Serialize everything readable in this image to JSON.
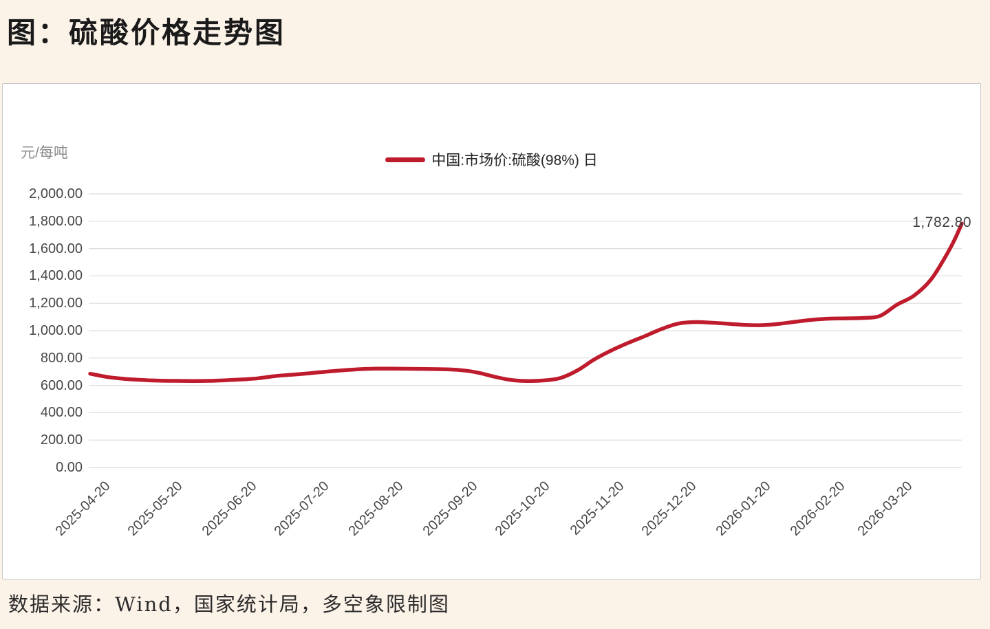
{
  "page": {
    "background_color": "#fcf3e8",
    "panel_color": "#ffffff",
    "grid_color": "#dedede",
    "accent_color": "#be1c2d"
  },
  "title": "图：硫酸价格走势图",
  "footer": "数据来源：Wind，国家统计局，多空象限制图",
  "chart_data": {
    "type": "line",
    "title": "硫酸价格走势图",
    "unit_label": "元/每吨",
    "legend_position": "top-center",
    "grid": true,
    "legend": [
      {
        "name": "中国:市场价:硫酸(98%) 日",
        "color": "#be1c2d"
      }
    ],
    "ylim": [
      0,
      2000
    ],
    "y_ticks": [
      "2,000.00",
      "1,800.00",
      "1,600.00",
      "1,400.00",
      "1,200.00",
      "1,000.00",
      "800.00",
      "600.00",
      "400.00",
      "200.00",
      "0.00"
    ],
    "x_ticks": [
      "2025-04-20",
      "2025-05-20",
      "2025-06-20",
      "2025-07-20",
      "2025-08-20",
      "2025-09-20",
      "2025-10-20",
      "2025-11-20",
      "2025-12-20",
      "2026-01-20",
      "2026-02-20",
      "2026-03-20"
    ],
    "x_range": [
      "2025-04-20",
      "2026-04-18"
    ],
    "end_label": "1,782.80",
    "end_value": 1782.8,
    "series": [
      {
        "name": "中国:市场价:硫酸(98%) 日",
        "color": "#be1c2d",
        "points": [
          [
            "2025-04-20",
            685
          ],
          [
            "2025-04-27",
            662
          ],
          [
            "2025-05-04",
            648
          ],
          [
            "2025-05-11",
            640
          ],
          [
            "2025-05-18",
            635
          ],
          [
            "2025-05-25",
            633
          ],
          [
            "2025-06-01",
            632
          ],
          [
            "2025-06-08",
            633
          ],
          [
            "2025-06-15",
            637
          ],
          [
            "2025-06-22",
            643
          ],
          [
            "2025-06-29",
            652
          ],
          [
            "2025-07-06",
            668
          ],
          [
            "2025-07-13",
            678
          ],
          [
            "2025-07-20",
            688
          ],
          [
            "2025-07-27",
            700
          ],
          [
            "2025-08-03",
            710
          ],
          [
            "2025-08-10",
            718
          ],
          [
            "2025-08-17",
            722
          ],
          [
            "2025-08-24",
            722
          ],
          [
            "2025-08-31",
            721
          ],
          [
            "2025-09-07",
            720
          ],
          [
            "2025-09-14",
            718
          ],
          [
            "2025-09-21",
            712
          ],
          [
            "2025-09-28",
            695
          ],
          [
            "2025-10-05",
            665
          ],
          [
            "2025-10-12",
            640
          ],
          [
            "2025-10-19",
            632
          ],
          [
            "2025-10-26",
            636
          ],
          [
            "2025-11-02",
            655
          ],
          [
            "2025-11-09",
            710
          ],
          [
            "2025-11-16",
            790
          ],
          [
            "2025-11-23",
            855
          ],
          [
            "2025-11-30",
            910
          ],
          [
            "2025-12-07",
            960
          ],
          [
            "2025-12-14",
            1012
          ],
          [
            "2025-12-21",
            1052
          ],
          [
            "2025-12-28",
            1063
          ],
          [
            "2026-01-04",
            1058
          ],
          [
            "2026-01-11",
            1050
          ],
          [
            "2026-01-18",
            1041
          ],
          [
            "2026-01-25",
            1040
          ],
          [
            "2026-02-01",
            1050
          ],
          [
            "2026-02-08",
            1066
          ],
          [
            "2026-02-15",
            1080
          ],
          [
            "2026-02-22",
            1088
          ],
          [
            "2026-03-01",
            1090
          ],
          [
            "2026-03-08",
            1093
          ],
          [
            "2026-03-15",
            1108
          ],
          [
            "2026-03-22",
            1190
          ],
          [
            "2026-03-29",
            1255
          ],
          [
            "2026-04-05",
            1370
          ],
          [
            "2026-04-11",
            1535
          ],
          [
            "2026-04-15",
            1665
          ],
          [
            "2026-04-18",
            1782.8
          ]
        ]
      }
    ]
  }
}
